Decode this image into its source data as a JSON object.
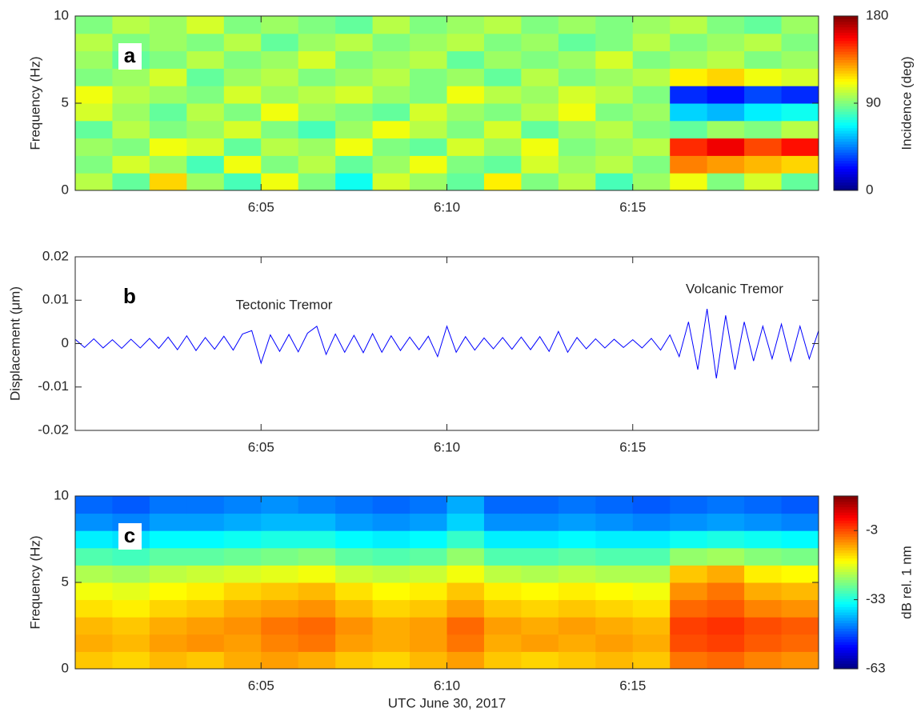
{
  "chart_data": [
    {
      "type": "heatmap",
      "panel_label": "a",
      "ylabel": "Frequency (Hz)",
      "colorbar_label": "Incidence (deg)",
      "colormap": "jet",
      "xlim": [
        360,
        380
      ],
      "xticks": [
        {
          "value": 365,
          "label": "6:05"
        },
        {
          "value": 370,
          "label": "6:10"
        },
        {
          "value": 375,
          "label": "6:15"
        }
      ],
      "ylim": [
        0,
        10
      ],
      "yticks": [
        0,
        5,
        10
      ],
      "clim": [
        0,
        180
      ],
      "cticks": [
        0,
        90,
        180
      ],
      "x": [
        360.5,
        361.5,
        362.5,
        363.5,
        364.5,
        365.5,
        366.5,
        367.5,
        368.5,
        369.5,
        370.5,
        371.5,
        372.5,
        373.5,
        374.5,
        375.5,
        376.5,
        377.5,
        378.5,
        379.5
      ],
      "y": [
        0.5,
        1.5,
        2.5,
        3.5,
        4.5,
        5.5,
        6.5,
        7.5,
        8.5,
        9.5
      ],
      "values": [
        [
          100,
          85,
          120,
          95,
          80,
          110,
          90,
          70,
          105,
          95,
          85,
          115,
          90,
          100,
          80,
          95,
          110,
          90,
          105,
          85
        ],
        [
          90,
          105,
          95,
          80,
          110,
          90,
          100,
          85,
          95,
          110,
          90,
          85,
          105,
          95,
          100,
          90,
          135,
          130,
          125,
          120
        ],
        [
          95,
          90,
          110,
          105,
          85,
          100,
          95,
          110,
          90,
          85,
          105,
          95,
          110,
          90,
          95,
          100,
          150,
          160,
          145,
          155
        ],
        [
          85,
          100,
          90,
          95,
          105,
          90,
          80,
          95,
          110,
          100,
          90,
          105,
          85,
          95,
          100,
          90,
          85,
          95,
          90,
          100
        ],
        [
          105,
          95,
          85,
          100,
          90,
          110,
          95,
          90,
          85,
          105,
          95,
          90,
          100,
          110,
          90,
          95,
          60,
          55,
          65,
          70
        ],
        [
          110,
          100,
          95,
          90,
          105,
          95,
          100,
          105,
          95,
          90,
          110,
          100,
          95,
          105,
          100,
          90,
          30,
          25,
          35,
          30
        ],
        [
          90,
          95,
          105,
          85,
          95,
          100,
          90,
          95,
          100,
          90,
          95,
          85,
          100,
          90,
          95,
          100,
          115,
          120,
          110,
          105
        ],
        [
          95,
          85,
          90,
          100,
          90,
          95,
          105,
          90,
          95,
          100,
          85,
          95,
          90,
          95,
          105,
          90,
          95,
          100,
          90,
          95
        ],
        [
          100,
          90,
          95,
          90,
          100,
          85,
          95,
          100,
          90,
          95,
          100,
          90,
          95,
          85,
          90,
          100,
          90,
          95,
          100,
          90
        ],
        [
          90,
          100,
          95,
          105,
          90,
          95,
          90,
          85,
          100,
          90,
          95,
          100,
          90,
          95,
          90,
          95,
          100,
          90,
          85,
          95
        ]
      ]
    },
    {
      "type": "line",
      "panel_label": "b",
      "ylabel": "Displacement (μm)",
      "annotations": [
        "Tectonic Tremor",
        "Volcanic Tremor"
      ],
      "color": "#0000ff",
      "xlim": [
        360,
        380
      ],
      "xticks": [
        {
          "value": 365,
          "label": "6:05"
        },
        {
          "value": 370,
          "label": "6:10"
        },
        {
          "value": 375,
          "label": "6:15"
        }
      ],
      "ylim": [
        -0.02,
        0.02
      ],
      "yticks": [
        -0.02,
        -0.01,
        0,
        0.01,
        0.02
      ],
      "x": [
        360,
        360.25,
        360.5,
        360.75,
        361,
        361.25,
        361.5,
        361.75,
        362,
        362.25,
        362.5,
        362.75,
        363,
        363.25,
        363.5,
        363.75,
        364,
        364.25,
        364.5,
        364.75,
        365,
        365.25,
        365.5,
        365.75,
        366,
        366.25,
        366.5,
        366.75,
        367,
        367.25,
        367.5,
        367.75,
        368,
        368.25,
        368.5,
        368.75,
        369,
        369.25,
        369.5,
        369.75,
        370,
        370.25,
        370.5,
        370.75,
        371,
        371.25,
        371.5,
        371.75,
        372,
        372.25,
        372.5,
        372.75,
        373,
        373.25,
        373.5,
        373.75,
        374,
        374.25,
        374.5,
        374.75,
        375,
        375.25,
        375.5,
        375.75,
        376,
        376.25,
        376.5,
        376.75,
        377,
        377.25,
        377.5,
        377.75,
        378,
        378.25,
        378.5,
        378.75,
        379,
        379.25,
        379.5,
        379.75,
        380
      ],
      "values": [
        0.001,
        -0.0009,
        0.0011,
        -0.001,
        0.0009,
        -0.0011,
        0.001,
        -0.001,
        0.0012,
        -0.0011,
        0.0015,
        -0.0014,
        0.0018,
        -0.0016,
        0.0014,
        -0.0013,
        0.0017,
        -0.0015,
        0.0022,
        0.003,
        -0.0045,
        0.002,
        -0.0018,
        0.0021,
        -0.0019,
        0.0024,
        0.004,
        -0.0025,
        0.0022,
        -0.002,
        0.0019,
        -0.0021,
        0.0023,
        -0.002,
        0.0018,
        -0.0016,
        0.0015,
        -0.0014,
        0.0017,
        -0.003,
        0.004,
        -0.002,
        0.0016,
        -0.0015,
        0.0013,
        -0.0012,
        0.0014,
        -0.0013,
        0.0015,
        -0.0014,
        0.0016,
        -0.0018,
        0.0028,
        -0.002,
        0.0014,
        -0.0012,
        0.0011,
        -0.001,
        0.001,
        -0.0009,
        0.0009,
        -0.001,
        0.0012,
        -0.0015,
        0.002,
        -0.003,
        0.005,
        -0.006,
        0.008,
        -0.008,
        0.0065,
        -0.006,
        0.005,
        -0.004,
        0.004,
        -0.0035,
        0.0045,
        -0.004,
        0.004,
        -0.0035,
        0.003
      ]
    },
    {
      "type": "heatmap",
      "panel_label": "c",
      "ylabel": "Frequency (Hz)",
      "xlabel": "UTC June 30, 2017",
      "colorbar_label": "dB rel. 1 nm",
      "colormap": "jet",
      "xlim": [
        360,
        380
      ],
      "xticks": [
        {
          "value": 365,
          "label": "6:05"
        },
        {
          "value": 370,
          "label": "6:10"
        },
        {
          "value": 375,
          "label": "6:15"
        }
      ],
      "ylim": [
        0,
        10
      ],
      "yticks": [
        0,
        5,
        10
      ],
      "clim": [
        -63,
        12
      ],
      "cticks": [
        -63,
        -33,
        -3
      ],
      "x": [
        360.5,
        361.5,
        362.5,
        363.5,
        364.5,
        365.5,
        366.5,
        367.5,
        368.5,
        369.5,
        370.5,
        371.5,
        372.5,
        373.5,
        374.5,
        375.5,
        376.5,
        377.5,
        378.5,
        379.5
      ],
      "y": [
        0.5,
        1.5,
        2.5,
        3.5,
        4.5,
        5.5,
        6.5,
        7.5,
        8.5,
        9.5
      ],
      "values": [
        [
          -12,
          -13,
          -11,
          -12,
          -10,
          -9,
          -10,
          -12,
          -13,
          -11,
          -9,
          -12,
          -13,
          -12,
          -11,
          -12,
          -6,
          -5,
          -7,
          -8
        ],
        [
          -10,
          -11,
          -9,
          -8,
          -9,
          -7,
          -6,
          -9,
          -10,
          -9,
          -6,
          -10,
          -9,
          -10,
          -9,
          -10,
          -3,
          -2,
          -4,
          -5
        ],
        [
          -11,
          -12,
          -10,
          -9,
          -8,
          -6,
          -5,
          -8,
          -10,
          -9,
          -5,
          -9,
          -10,
          -9,
          -10,
          -11,
          -2,
          -1,
          -3,
          -4
        ],
        [
          -14,
          -15,
          -13,
          -12,
          -10,
          -9,
          -8,
          -11,
          -13,
          -12,
          -9,
          -12,
          -13,
          -12,
          -13,
          -14,
          -5,
          -4,
          -7,
          -8
        ],
        [
          -17,
          -18,
          -16,
          -15,
          -13,
          -12,
          -11,
          -14,
          -16,
          -15,
          -12,
          -15,
          -16,
          -15,
          -16,
          -17,
          -8,
          -6,
          -10,
          -11
        ],
        [
          -22,
          -23,
          -21,
          -20,
          -19,
          -18,
          -17,
          -20,
          -21,
          -20,
          -17,
          -21,
          -22,
          -21,
          -22,
          -22,
          -12,
          -10,
          -15,
          -16
        ],
        [
          -29,
          -30,
          -28,
          -28,
          -27,
          -26,
          -25,
          -28,
          -29,
          -28,
          -24,
          -29,
          -29,
          -28,
          -29,
          -29,
          -24,
          -23,
          -25,
          -26
        ],
        [
          -36,
          -37,
          -35,
          -35,
          -34,
          -33,
          -33,
          -35,
          -36,
          -35,
          -31,
          -36,
          -36,
          -35,
          -36,
          -36,
          -34,
          -33,
          -34,
          -35
        ],
        [
          -43,
          -44,
          -42,
          -42,
          -41,
          -40,
          -40,
          -42,
          -43,
          -42,
          -38,
          -43,
          -43,
          -42,
          -43,
          -44,
          -43,
          -42,
          -43,
          -44
        ],
        [
          -46,
          -47,
          -45,
          -45,
          -44,
          -43,
          -44,
          -45,
          -46,
          -45,
          -41,
          -46,
          -46,
          -45,
          -46,
          -47,
          -46,
          -45,
          -46,
          -47
        ]
      ]
    }
  ]
}
